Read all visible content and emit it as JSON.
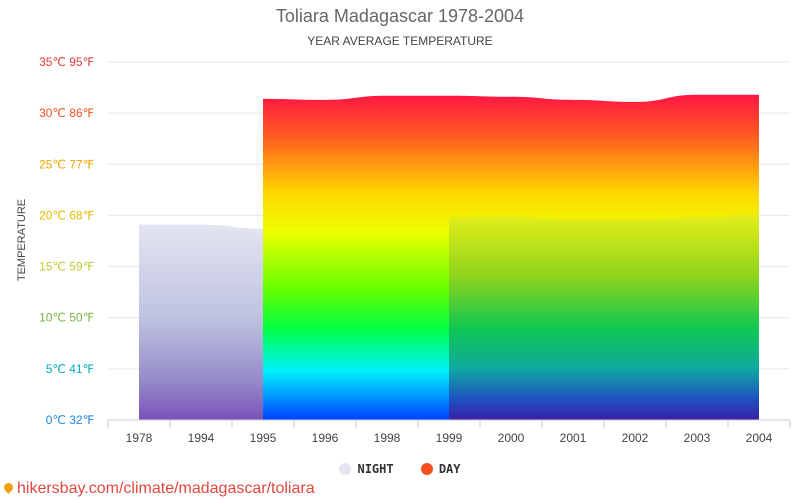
{
  "header": {
    "title": "Toliara Madagascar 1978-2004",
    "subtitle": "YEAR AVERAGE TEMPERATURE"
  },
  "legend": {
    "night_label": "NIGHT",
    "day_label": "DAY",
    "night_color": "#e6e6f0",
    "day_color": "#f4511e"
  },
  "source": {
    "text": "hikersbay.com/climate/madagascar/toliara"
  },
  "chart_data": {
    "type": "area",
    "ylabel": "TEMPERATURE",
    "ylim": [
      0,
      35
    ],
    "y_ticks": [
      {
        "value": 0,
        "label": "0℃ 32℉",
        "color": "#1e88e5"
      },
      {
        "value": 5,
        "label": "5℃ 41℉",
        "color": "#00acc1"
      },
      {
        "value": 10,
        "label": "10℃ 50℉",
        "color": "#7cb342"
      },
      {
        "value": 15,
        "label": "15℃ 59℉",
        "color": "#c0ca33"
      },
      {
        "value": 20,
        "label": "20℃ 68℉",
        "color": "#e6b800"
      },
      {
        "value": 25,
        "label": "25℃ 77℉",
        "color": "#f4a300"
      },
      {
        "value": 30,
        "label": "30℃ 86℉",
        "color": "#f4511e"
      },
      {
        "value": 35,
        "label": "35℃ 95℉",
        "color": "#e53935"
      }
    ],
    "categories": [
      "1978",
      "1994",
      "1995",
      "1996",
      "1998",
      "1999",
      "2000",
      "2001",
      "2002",
      "2003",
      "2004"
    ],
    "series": [
      {
        "name": "NIGHT",
        "values": [
          19.1,
          19.1,
          18.7,
          null,
          null,
          19.8,
          19.9,
          19.6,
          19.6,
          19.8,
          20.1
        ]
      },
      {
        "name": "DAY",
        "values": [
          null,
          null,
          31.4,
          31.3,
          31.7,
          31.7,
          31.6,
          31.3,
          31.1,
          31.8,
          31.8
        ]
      }
    ],
    "grid": true,
    "legend_position": "bottom"
  }
}
